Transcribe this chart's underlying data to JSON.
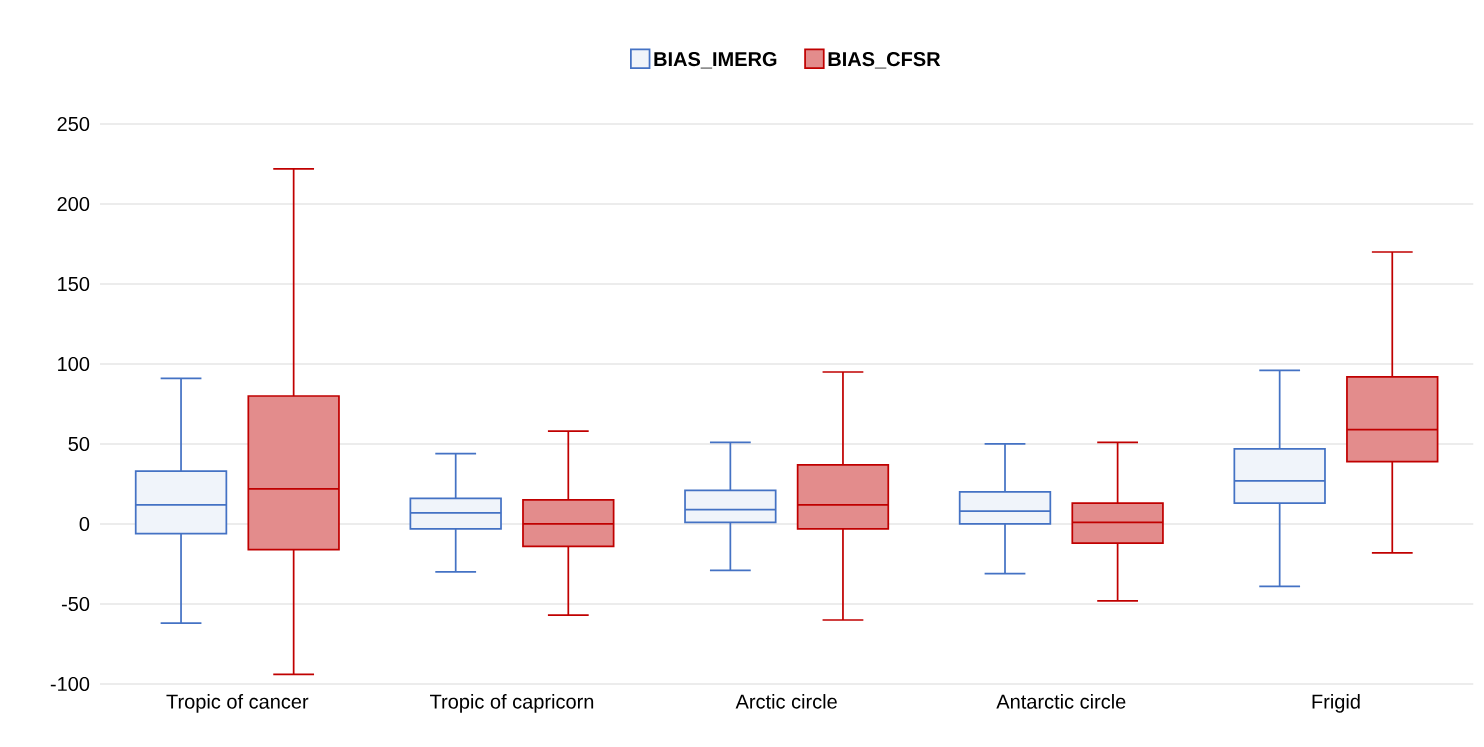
{
  "chart_data": {
    "type": "box",
    "categories": [
      "Tropic of cancer",
      "Tropic of capricorn",
      "Arctic circle",
      "Antarctic circle",
      "Frigid"
    ],
    "series": [
      {
        "name": "BIAS_IMERG",
        "color": "#4472c4",
        "boxes": [
          {
            "low": -62,
            "q1": -6,
            "median": 12,
            "q3": 33,
            "high": 91
          },
          {
            "low": -30,
            "q1": -3,
            "median": 7,
            "q3": 16,
            "high": 44
          },
          {
            "low": -29,
            "q1": 1,
            "median": 9,
            "q3": 21,
            "high": 51
          },
          {
            "low": -31,
            "q1": 0,
            "median": 8,
            "q3": 20,
            "high": 50
          },
          {
            "low": -39,
            "q1": 13,
            "median": 27,
            "q3": 47,
            "high": 96
          }
        ]
      },
      {
        "name": "BIAS_CFSR",
        "color": "#c00000",
        "boxes": [
          {
            "low": -94,
            "q1": -16,
            "median": 22,
            "q3": 80,
            "high": 222
          },
          {
            "low": -57,
            "q1": -14,
            "median": 0,
            "q3": 15,
            "high": 58
          },
          {
            "low": -60,
            "q1": -3,
            "median": 12,
            "q3": 37,
            "high": 95
          },
          {
            "low": -48,
            "q1": -12,
            "median": 1,
            "q3": 13,
            "high": 51
          },
          {
            "low": -18,
            "q1": 39,
            "median": 59,
            "q3": 92,
            "high": 170
          }
        ]
      }
    ],
    "ylim": [
      -100,
      250
    ],
    "yticks": [
      -100,
      -50,
      0,
      50,
      100,
      150,
      200,
      250
    ],
    "grid": "y",
    "legend": "top"
  }
}
